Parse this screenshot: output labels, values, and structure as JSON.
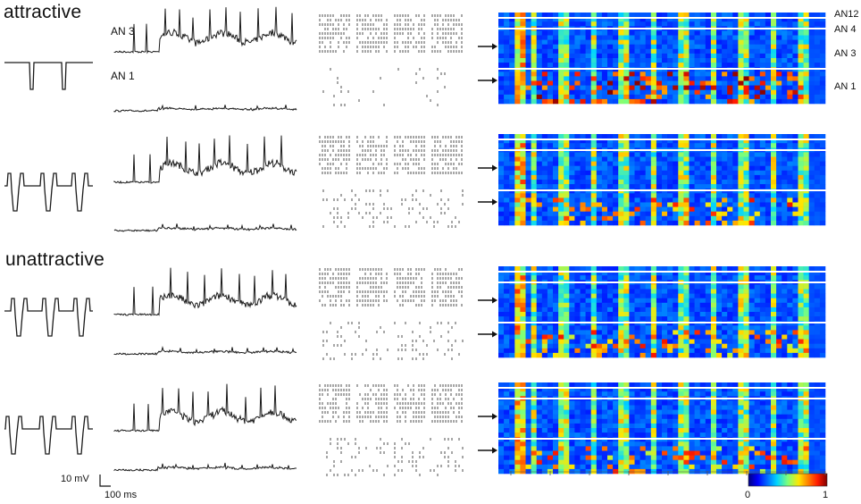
{
  "conditions": {
    "attractive": "attractive",
    "unattractive": "unattractive"
  },
  "trace_labels": {
    "upper": "AN 3",
    "lower": "AN 1"
  },
  "heatmap_row_labels": [
    "AN12",
    "AN 4",
    "AN 3",
    "AN 1"
  ],
  "scale_bar": {
    "voltage": "10 mV",
    "time": "100 ms"
  },
  "colorbar": {
    "min": "0",
    "max": "1",
    "colormap": "jet"
  },
  "stimulus_patterns": [
    "single-notch",
    "double-notch",
    "double-notch-late",
    "double-notch-wide"
  ],
  "colors": {
    "trace": "#1a1a1a",
    "separator": "#ffffff",
    "heatmap_bg": "#1a2f8a"
  }
}
